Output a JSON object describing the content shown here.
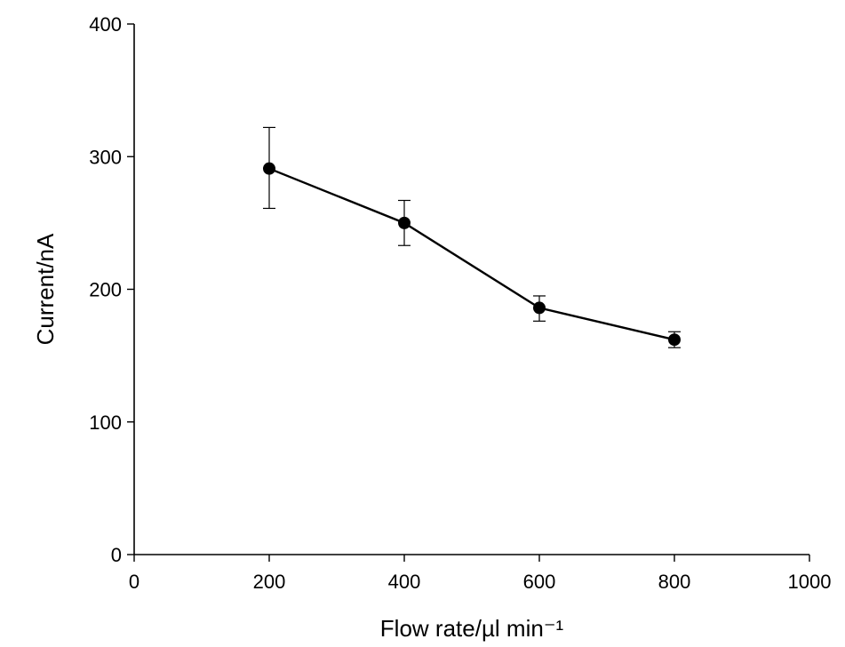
{
  "chart_data": {
    "type": "line",
    "title": "",
    "xlabel": "Flow rate/µl min⁻¹",
    "ylabel": "Current/nA",
    "xlim": [
      0,
      1000
    ],
    "ylim": [
      0,
      400
    ],
    "xticks": [
      0,
      200,
      400,
      600,
      800,
      1000
    ],
    "yticks": [
      0,
      100,
      200,
      300,
      400
    ],
    "grid": false,
    "series": [
      {
        "x": [
          200,
          400,
          600,
          800
        ],
        "y": [
          291,
          250,
          186,
          162
        ],
        "error_low": [
          261,
          233,
          176,
          156
        ],
        "error_high": [
          322,
          267,
          195,
          168
        ]
      }
    ]
  }
}
